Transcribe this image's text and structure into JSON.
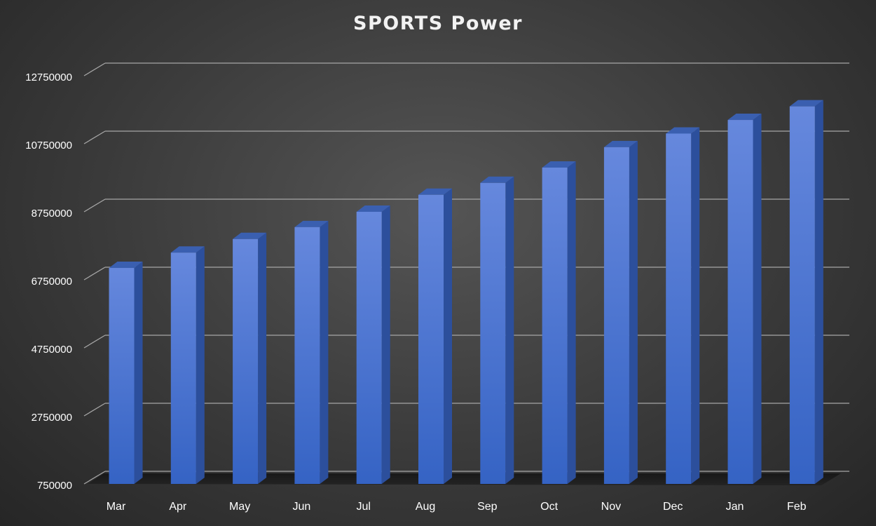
{
  "chart_data": {
    "type": "bar",
    "title": "SPORTS Power",
    "xlabel": "",
    "ylabel": "",
    "categories": [
      "Mar",
      "Apr",
      "May",
      "Jun",
      "Jul",
      "Aug",
      "Sep",
      "Oct",
      "Nov",
      "Dec",
      "Jan",
      "Feb"
    ],
    "values": [
      7100000,
      7550000,
      7950000,
      8300000,
      8750000,
      9250000,
      9600000,
      10050000,
      10650000,
      11050000,
      11450000,
      11850000
    ],
    "yticks": [
      "750000",
      "2750000",
      "4750000",
      "6750000",
      "8750000",
      "10750000",
      "12750000"
    ],
    "ylim": [
      750000,
      12750000
    ],
    "style": "3d-column",
    "grid": true,
    "legend": "none",
    "colors": {
      "bar_front_top": "#6688dd",
      "bar_front_bottom": "#3563c4",
      "bar_side": "#2c4f9c",
      "bar_top": "#3a5fb0",
      "gridline": "#a6a6a6",
      "tick_label": "#ffffff",
      "title": "#f2f2f2"
    }
  }
}
